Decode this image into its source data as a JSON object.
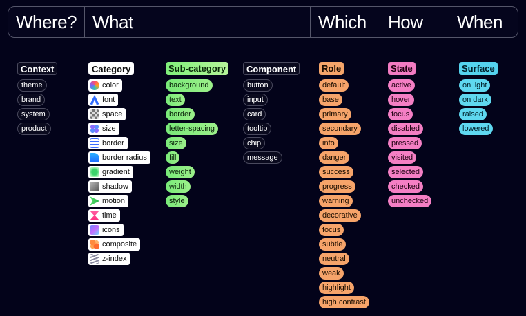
{
  "header": {
    "where": "Where?",
    "what": "What",
    "which": "Which",
    "how": "How",
    "when": "When"
  },
  "colors": {
    "background": "#03031a",
    "subcategory": "#78e978",
    "role": "#f6a46a",
    "state": "#f47fc4",
    "surface": "#5fd8f0"
  },
  "context": {
    "title": "Context",
    "items": [
      "theme",
      "brand",
      "system",
      "product"
    ]
  },
  "category": {
    "title": "Category",
    "items": [
      {
        "label": "color",
        "icon": "color-icon"
      },
      {
        "label": "font",
        "icon": "font-icon"
      },
      {
        "label": "space",
        "icon": "space-icon"
      },
      {
        "label": "size",
        "icon": "size-icon"
      },
      {
        "label": "border",
        "icon": "border-icon"
      },
      {
        "label": "border radius",
        "icon": "border-radius-icon"
      },
      {
        "label": "gradient",
        "icon": "gradient-icon"
      },
      {
        "label": "shadow",
        "icon": "shadow-icon"
      },
      {
        "label": "motion",
        "icon": "motion-icon"
      },
      {
        "label": "time",
        "icon": "time-icon"
      },
      {
        "label": "icons",
        "icon": "icons-icon"
      },
      {
        "label": "composite",
        "icon": "composite-icon"
      },
      {
        "label": "z-index",
        "icon": "z-index-icon"
      }
    ]
  },
  "subcategory": {
    "title": "Sub-category",
    "items": [
      "background",
      "text",
      "border",
      "letter-spacing",
      "size",
      "fill",
      "weight",
      "width",
      "style"
    ]
  },
  "component": {
    "title": "Component",
    "items": [
      "button",
      "input",
      "card",
      "tooltip",
      "chip",
      "message"
    ]
  },
  "role": {
    "title": "Role",
    "items": [
      "default",
      "base",
      "primary",
      "secondary",
      "info",
      "danger",
      "success",
      "progress",
      "warning",
      "decorative",
      "focus",
      "subtle",
      "neutral",
      "weak",
      "highlight",
      "high contrast"
    ]
  },
  "state": {
    "title": "State",
    "items": [
      "active",
      "hover",
      "focus",
      "disabled",
      "pressed",
      "visited",
      "selected",
      "checked",
      "unchecked"
    ]
  },
  "surface": {
    "title": "Surface",
    "items": [
      "on light",
      "on dark",
      "raised",
      "lowered"
    ]
  }
}
